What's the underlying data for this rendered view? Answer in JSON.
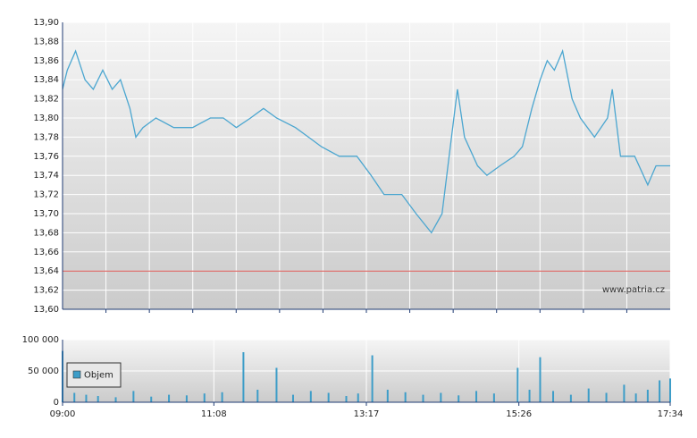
{
  "chart_data": [
    {
      "type": "line",
      "x": [
        "09:00",
        "09:04",
        "09:11",
        "09:19",
        "09:26",
        "09:34",
        "09:42",
        "09:49",
        "09:57",
        "10:02",
        "10:08",
        "10:19",
        "10:34",
        "10:50",
        "11:05",
        "11:16",
        "11:27",
        "11:39",
        "11:50",
        "12:01",
        "12:17",
        "12:28",
        "12:39",
        "12:54",
        "13:09",
        "13:21",
        "13:32",
        "13:47",
        "13:59",
        "14:12",
        "14:21",
        "14:27",
        "14:34",
        "14:40",
        "14:51",
        "14:59",
        "15:10",
        "15:22",
        "15:29",
        "15:37",
        "15:44",
        "15:50",
        "15:56",
        "16:03",
        "16:11",
        "16:18",
        "16:30",
        "16:41",
        "16:45",
        "16:52",
        "17:04",
        "17:15",
        "17:22",
        "17:34"
      ],
      "values": [
        13.83,
        13.85,
        13.87,
        13.84,
        13.83,
        13.85,
        13.83,
        13.84,
        13.81,
        13.78,
        13.79,
        13.8,
        13.79,
        13.79,
        13.8,
        13.8,
        13.79,
        13.8,
        13.81,
        13.8,
        13.79,
        13.78,
        13.77,
        13.76,
        13.76,
        13.74,
        13.72,
        13.72,
        13.7,
        13.68,
        13.7,
        13.76,
        13.83,
        13.78,
        13.75,
        13.74,
        13.75,
        13.76,
        13.77,
        13.81,
        13.84,
        13.86,
        13.85,
        13.87,
        13.82,
        13.8,
        13.78,
        13.8,
        13.83,
        13.76,
        13.76,
        13.73,
        13.75,
        13.75
      ],
      "color": "#4ba6d0",
      "xlim": [
        "09:00",
        "17:34"
      ],
      "ylim": [
        13.6,
        13.9
      ],
      "yticks": [
        {
          "value": 13.6,
          "label": "13,60"
        },
        {
          "value": 13.62,
          "label": "13,62"
        },
        {
          "value": 13.64,
          "label": "13,64"
        },
        {
          "value": 13.66,
          "label": "13,66"
        },
        {
          "value": 13.68,
          "label": "13,68"
        },
        {
          "value": 13.7,
          "label": "13,70"
        },
        {
          "value": 13.72,
          "label": "13,72"
        },
        {
          "value": 13.74,
          "label": "13,74"
        },
        {
          "value": 13.76,
          "label": "13,76"
        },
        {
          "value": 13.78,
          "label": "13,78"
        },
        {
          "value": 13.8,
          "label": "13,80"
        },
        {
          "value": 13.82,
          "label": "13,82"
        },
        {
          "value": 13.84,
          "label": "13,84"
        },
        {
          "value": 13.86,
          "label": "13,86"
        },
        {
          "value": 13.88,
          "label": "13,88"
        },
        {
          "value": 13.9,
          "label": "13,90"
        }
      ],
      "grid": true,
      "reference_line": 13.64,
      "reference_color": "#d9534f",
      "watermark": "www.patria.cz"
    },
    {
      "type": "bar",
      "x": [
        "09:00",
        "09:10",
        "09:20",
        "09:30",
        "09:45",
        "10:00",
        "10:15",
        "10:30",
        "10:45",
        "11:00",
        "11:15",
        "11:33",
        "11:45",
        "12:01",
        "12:15",
        "12:30",
        "12:45",
        "13:00",
        "13:10",
        "13:22",
        "13:35",
        "13:50",
        "14:05",
        "14:20",
        "14:35",
        "14:50",
        "15:05",
        "15:25",
        "15:35",
        "15:44",
        "15:55",
        "16:10",
        "16:25",
        "16:40",
        "16:55",
        "17:05",
        "17:15",
        "17:25",
        "17:34"
      ],
      "series": [
        {
          "name": "Objem",
          "color": "#3d9dc8",
          "values": [
            82000,
            15000,
            12000,
            10000,
            8000,
            18000,
            9000,
            12000,
            11000,
            14000,
            16000,
            80000,
            20000,
            55000,
            12000,
            18000,
            15000,
            10000,
            14000,
            75000,
            20000,
            16000,
            12000,
            15000,
            11000,
            18000,
            14000,
            55000,
            20000,
            72000,
            18000,
            12000,
            22000,
            15000,
            28000,
            14000,
            20000,
            35000,
            38000
          ]
        }
      ],
      "xlim": [
        "09:00",
        "17:34"
      ],
      "xticks": [
        "09:00",
        "11:08",
        "13:17",
        "15:26",
        "17:34"
      ],
      "ylim": [
        0,
        100000
      ],
      "yticks": [
        0,
        {
          "value": 50000,
          "label": "50 000"
        },
        {
          "value": 100000,
          "label": "100 000"
        }
      ],
      "grid": true,
      "legend": "upper-left"
    }
  ]
}
